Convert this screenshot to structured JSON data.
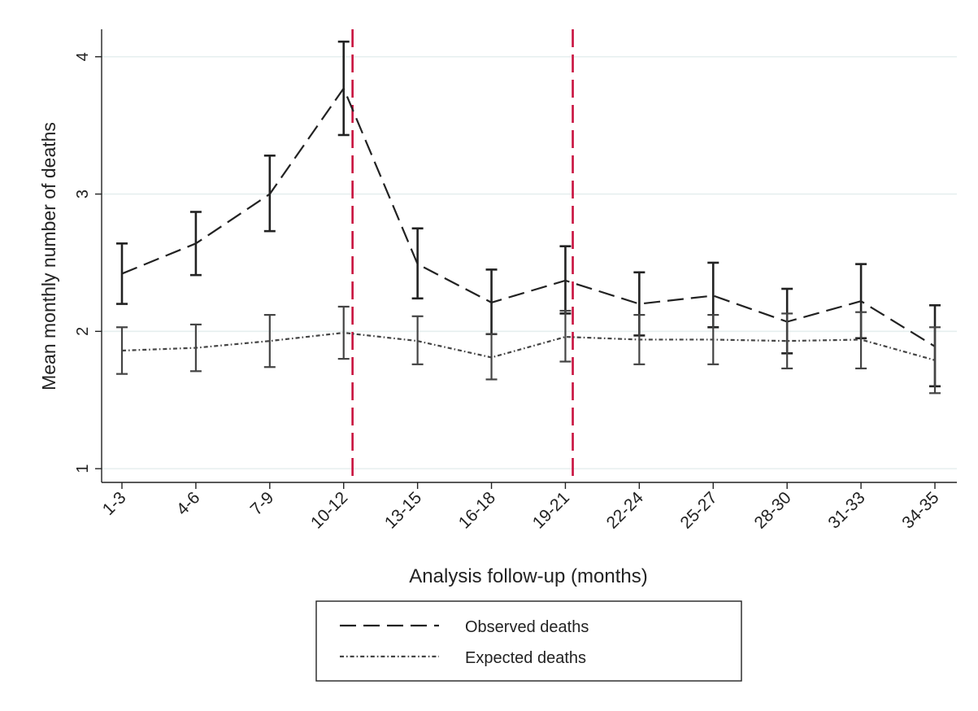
{
  "chart_data": {
    "type": "line",
    "xlabel": "Analysis follow-up (months)",
    "ylabel": "Mean monthly number of deaths",
    "categories": [
      "1-3",
      "4-6",
      "7-9",
      "10-12",
      "13-15",
      "16-18",
      "19-21",
      "22-24",
      "25-27",
      "28-30",
      "31-33",
      "34-35"
    ],
    "ylim": [
      0.9,
      4.2
    ],
    "yticks": [
      1,
      2,
      3,
      4
    ],
    "grid": true,
    "legend_position": "bottom",
    "reference_lines": [
      {
        "x_position": 3.12,
        "color": "#c8103e",
        "style": "dashed"
      },
      {
        "x_position": 6.1,
        "color": "#c8103e",
        "style": "dashed"
      }
    ],
    "series": [
      {
        "name": "Observed deaths",
        "style": "dashed",
        "color": "#222222",
        "values": [
          2.42,
          2.64,
          3.0,
          3.77,
          2.49,
          2.21,
          2.37,
          2.2,
          2.26,
          2.07,
          2.22,
          1.89
        ],
        "lower": [
          2.2,
          2.41,
          2.73,
          3.43,
          2.24,
          1.98,
          2.13,
          1.97,
          2.03,
          1.84,
          1.95,
          1.6
        ],
        "upper": [
          2.64,
          2.87,
          3.28,
          4.11,
          2.75,
          2.45,
          2.62,
          2.43,
          2.5,
          2.31,
          2.49,
          2.19
        ]
      },
      {
        "name": "Expected deaths",
        "style": "dash-dot",
        "color": "#444444",
        "values": [
          1.86,
          1.88,
          1.93,
          1.99,
          1.93,
          1.81,
          1.96,
          1.94,
          1.94,
          1.93,
          1.94,
          1.79
        ],
        "lower": [
          1.69,
          1.71,
          1.74,
          1.8,
          1.76,
          1.65,
          1.78,
          1.76,
          1.76,
          1.73,
          1.73,
          1.55
        ],
        "upper": [
          2.03,
          2.05,
          2.12,
          2.18,
          2.11,
          1.98,
          2.15,
          2.12,
          2.12,
          2.13,
          2.14,
          2.03
        ]
      }
    ]
  }
}
